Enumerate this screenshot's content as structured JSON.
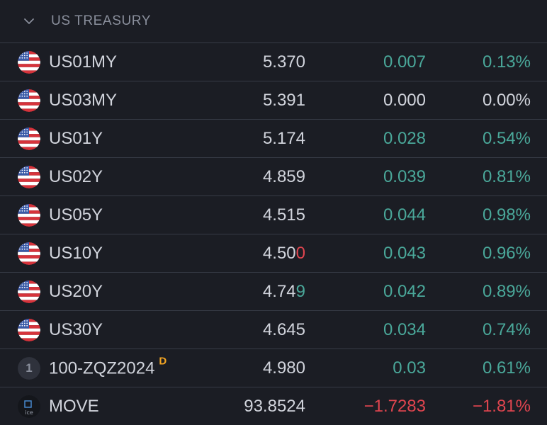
{
  "section": {
    "title": "US TREASURY",
    "chevron_icon": "chevron-down-icon"
  },
  "colors": {
    "positive": "#4aa89a",
    "negative": "#e0454f",
    "neutral": "#d1d4dc",
    "background": "#1b1d24",
    "divider": "#363a45",
    "badge_delayed": "#f5a623"
  },
  "rows": [
    {
      "icon": "us-flag-icon",
      "symbol": "US01MY",
      "last_main": "5.370",
      "last_tick": "",
      "change": "0.007",
      "change_pct": "0.13%",
      "direction": "pos"
    },
    {
      "icon": "us-flag-icon",
      "symbol": "US03MY",
      "last_main": "5.391",
      "last_tick": "",
      "change": "0.000",
      "change_pct": "0.00%",
      "direction": "neu"
    },
    {
      "icon": "us-flag-icon",
      "symbol": "US01Y",
      "last_main": "5.174",
      "last_tick": "",
      "change": "0.028",
      "change_pct": "0.54%",
      "direction": "pos"
    },
    {
      "icon": "us-flag-icon",
      "symbol": "US02Y",
      "last_main": "4.859",
      "last_tick": "",
      "change": "0.039",
      "change_pct": "0.81%",
      "direction": "pos"
    },
    {
      "icon": "us-flag-icon",
      "symbol": "US05Y",
      "last_main": "4.515",
      "last_tick": "",
      "change": "0.044",
      "change_pct": "0.98%",
      "direction": "pos"
    },
    {
      "icon": "us-flag-icon",
      "symbol": "US10Y",
      "last_main": "4.50",
      "last_tick": "0",
      "last_tick_dir": "neg",
      "change": "0.043",
      "change_pct": "0.96%",
      "direction": "pos"
    },
    {
      "icon": "us-flag-icon",
      "symbol": "US20Y",
      "last_main": "4.74",
      "last_tick": "9",
      "last_tick_dir": "pos",
      "change": "0.042",
      "change_pct": "0.89%",
      "direction": "pos"
    },
    {
      "icon": "us-flag-icon",
      "symbol": "US30Y",
      "last_main": "4.645",
      "last_tick": "",
      "change": "0.034",
      "change_pct": "0.74%",
      "direction": "pos"
    },
    {
      "icon": "number-badge-icon",
      "badge_text": "1",
      "symbol": "100-ZQZ2024",
      "badge": "D",
      "last_main": "4.980",
      "last_tick": "",
      "change": "0.03",
      "change_pct": "0.61%",
      "direction": "pos"
    },
    {
      "icon": "ice-logo-icon",
      "logo_text": "ice",
      "symbol": "MOVE",
      "last_main": "93.8524",
      "last_tick": "",
      "change": "−1.7283",
      "change_pct": "−1.81%",
      "direction": "neg"
    }
  ]
}
